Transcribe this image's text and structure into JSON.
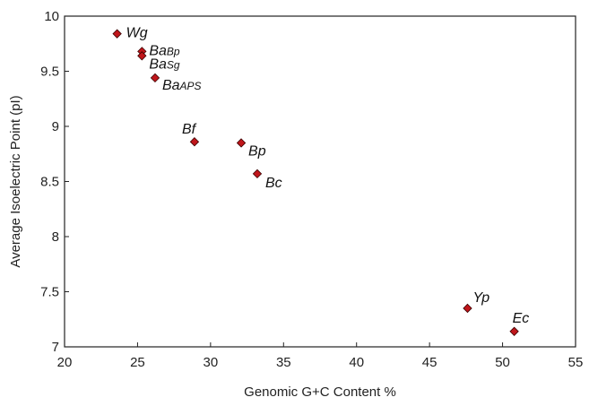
{
  "chart_data": {
    "type": "scatter",
    "title": "",
    "xlabel": "Genomic G+C  Content %",
    "ylabel": "Average Isoelectric Point (pI)",
    "xlim": [
      20,
      55
    ],
    "ylim": [
      7,
      10
    ],
    "x_ticks": [
      "20",
      "25",
      "30",
      "35",
      "40",
      "45",
      "50",
      "55"
    ],
    "y_ticks": [
      "7",
      "7.5",
      "8",
      "8.5",
      "9",
      "9.5",
      "10"
    ],
    "grid": false,
    "marker_color": "#c0161b",
    "marker_shape": "diamond",
    "points": [
      {
        "label": "Wg",
        "label_main": "Wg",
        "label_sub": "",
        "x": 23.6,
        "y": 9.84
      },
      {
        "label": "BaBp",
        "label_main": "Ba",
        "label_sub": "Bp",
        "x": 25.3,
        "y": 9.68
      },
      {
        "label": "BaSg",
        "label_main": "Ba",
        "label_sub": "Sg",
        "x": 25.3,
        "y": 9.64
      },
      {
        "label": "BaAPS",
        "label_main": "Ba",
        "label_sub": "APS",
        "x": 26.2,
        "y": 9.44
      },
      {
        "label": "Bf",
        "label_main": "Bf",
        "label_sub": "",
        "x": 28.9,
        "y": 8.86
      },
      {
        "label": "Bp",
        "label_main": "Bp",
        "label_sub": "",
        "x": 32.1,
        "y": 8.85
      },
      {
        "label": "Bc",
        "label_main": "Bc",
        "label_sub": "",
        "x": 33.2,
        "y": 8.57
      },
      {
        "label": "Yp",
        "label_main": "Yp",
        "label_sub": "",
        "x": 47.6,
        "y": 7.35
      },
      {
        "label": "Ec",
        "label_main": "Ec",
        "label_sub": "",
        "x": 50.8,
        "y": 7.14
      }
    ]
  }
}
